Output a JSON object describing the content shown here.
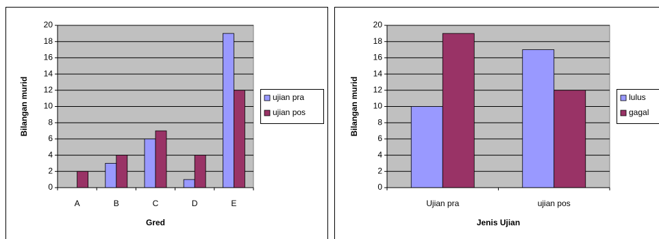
{
  "chart_data": [
    {
      "type": "bar",
      "categories": [
        "A",
        "B",
        "C",
        "D",
        "E"
      ],
      "series": [
        {
          "name": "ujian pra",
          "color": "#9999ff",
          "values": [
            0,
            3,
            6,
            1,
            19
          ]
        },
        {
          "name": "ujian pos",
          "color": "#993366",
          "values": [
            2,
            4,
            7,
            4,
            12
          ]
        }
      ],
      "ylim": [
        0,
        20
      ],
      "yticks": [
        0,
        2,
        4,
        6,
        8,
        10,
        12,
        14,
        16,
        18,
        20
      ],
      "grid": true,
      "xlabel": "Gred",
      "ylabel": "Bilangan murid",
      "legend": "right"
    },
    {
      "type": "bar",
      "categories": [
        "Ujian pra",
        "ujian pos"
      ],
      "series": [
        {
          "name": "lulus",
          "color": "#9999ff",
          "values": [
            10,
            17
          ]
        },
        {
          "name": "gagal",
          "color": "#993366",
          "values": [
            19,
            12
          ]
        }
      ],
      "ylim": [
        0,
        20
      ],
      "yticks": [
        0,
        2,
        4,
        6,
        8,
        10,
        12,
        14,
        16,
        18,
        20
      ],
      "grid": true,
      "xlabel": "Jenis Ujian",
      "ylabel": "Bilangan murid",
      "legend": "right"
    }
  ]
}
